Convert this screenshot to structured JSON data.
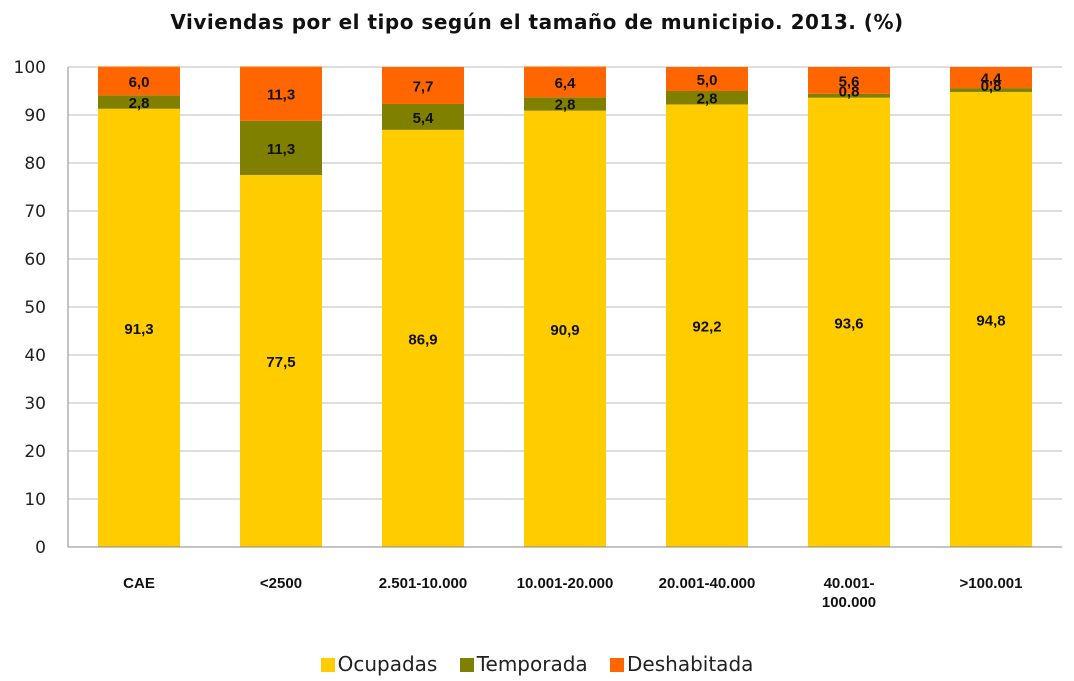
{
  "title": "Viviendas por el tipo según el tamaño de municipio. 2013. (%)",
  "colors": {
    "Ocupadas": "#FFCC00",
    "Temporada": "#808000",
    "Deshabitada": "#FF6600",
    "grid": "#bdbdbd"
  },
  "chart_data": {
    "type": "bar",
    "stacked": true,
    "title": "Viviendas por el tipo según el tamaño de municipio. 2013. (%)",
    "categories": [
      "CAE",
      "<2500",
      "2.501-10.000",
      "10.001-20.000",
      "20.001-40.000",
      "40.001-\n100.000",
      ">100.001"
    ],
    "series": [
      {
        "name": "Ocupadas",
        "values": [
          91.3,
          77.5,
          86.9,
          90.9,
          92.2,
          93.6,
          94.8
        ],
        "labels": [
          "91,3",
          "77,5",
          "86,9",
          "90,9",
          "92,2",
          "93,6",
          "94,8"
        ]
      },
      {
        "name": "Temporada",
        "values": [
          2.8,
          11.3,
          5.4,
          2.8,
          2.8,
          0.8,
          0.8
        ],
        "labels": [
          "2,8",
          "11,3",
          "5,4",
          "2,8",
          "2,8",
          "0,8",
          "0,8"
        ]
      },
      {
        "name": "Deshabitada",
        "values": [
          6.0,
          11.3,
          7.7,
          6.4,
          5.0,
          5.6,
          4.4
        ],
        "labels": [
          "6,0",
          "11,3",
          "7,7",
          "6,4",
          "5,0",
          "5,6",
          "4,4"
        ]
      }
    ],
    "ylim": [
      0,
      100
    ],
    "yticks": [
      0,
      10,
      20,
      30,
      40,
      50,
      60,
      70,
      80,
      90,
      100
    ],
    "grid": true,
    "legend": "bottom"
  }
}
